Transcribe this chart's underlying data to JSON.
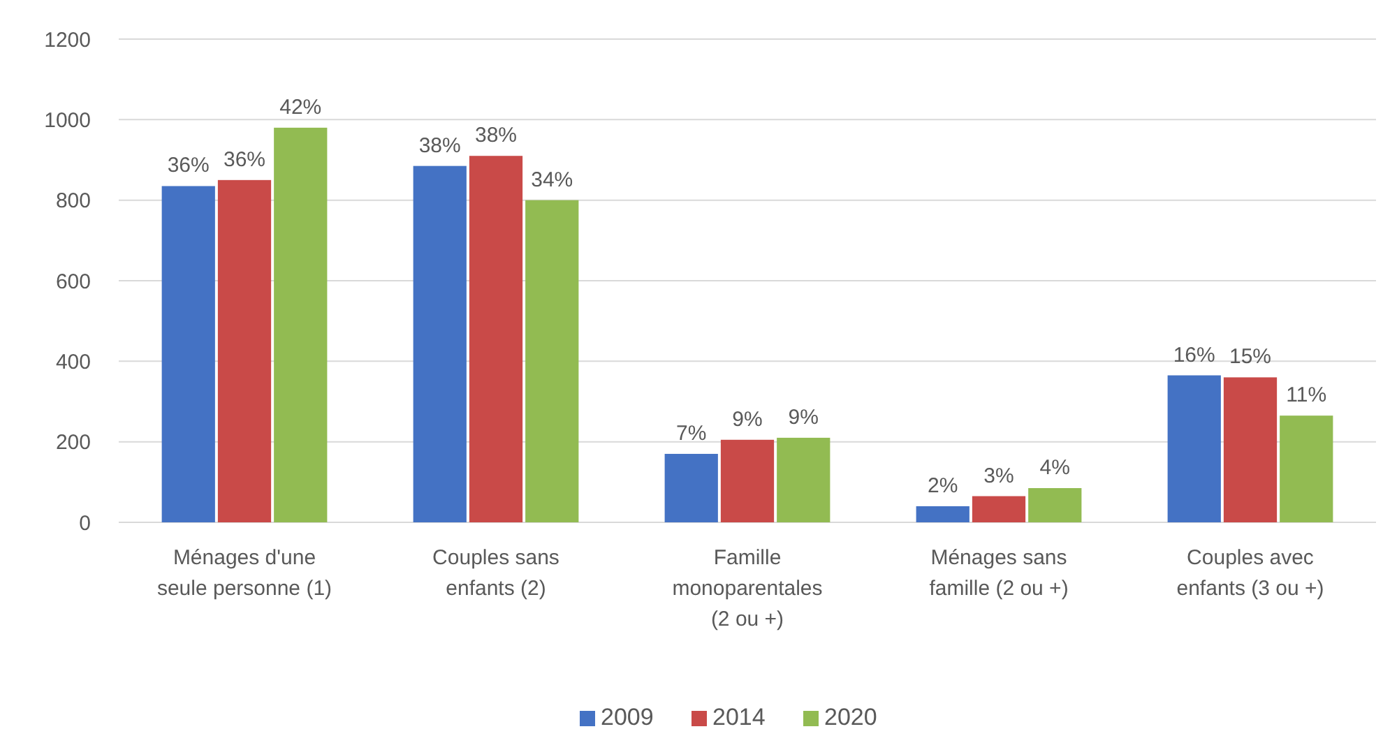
{
  "chart_data": {
    "type": "bar",
    "categories": [
      "Ménages d'une seule personne (1)",
      "Couples sans enfants (2)",
      "Famille monoparentales (2 ou +)",
      "Ménages sans famille (2 ou +)",
      "Couples avec enfants (3 ou +)"
    ],
    "series": [
      {
        "name": "2009",
        "color": "#4472c4",
        "values": [
          835,
          885,
          170,
          40,
          365
        ]
      },
      {
        "name": "2014",
        "color": "#c94a48",
        "values": [
          850,
          910,
          205,
          65,
          360
        ]
      },
      {
        "name": "2020",
        "color": "#92bb52",
        "values": [
          980,
          800,
          210,
          85,
          265
        ]
      }
    ],
    "annotations": [
      "36%",
      "38%",
      "7%",
      "2%",
      "16%",
      "36%",
      "38%",
      "9%",
      "3%",
      "15%",
      "42%",
      "34%",
      "9%",
      "4%",
      "11%"
    ],
    "ylim": [
      0,
      1200
    ],
    "yticks": [
      0,
      200,
      400,
      600,
      800,
      1000,
      1200
    ],
    "grid": "y",
    "legend": "bottom"
  }
}
